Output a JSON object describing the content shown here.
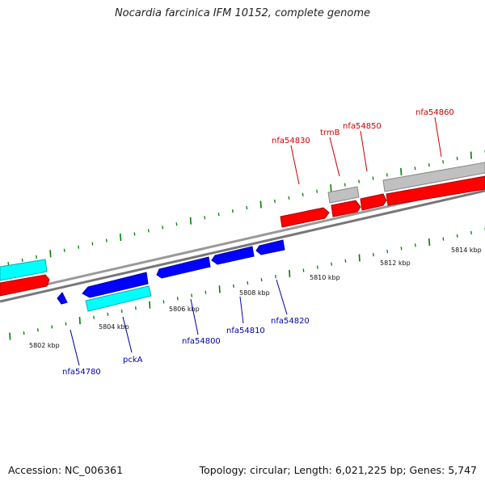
{
  "title": "Nocardia farcinica IFM 10152, complete genome",
  "footer": {
    "accession": "Accession: NC_006361",
    "summary": "Topology: circular; Length: 6,021,225 bp; Genes: 5,747"
  },
  "colors": {
    "forward_gene": "#ff0000",
    "reverse_gene": "#0000ff",
    "forward_other": "#00ffff",
    "reverse_other": "#c0c0c0",
    "tick": "#008000",
    "backbone": "#888888",
    "red_label": "#cc0000",
    "blue_label": "#0000aa"
  },
  "axis": {
    "unit": "kbp",
    "tick_labels": [
      "5802 kbp",
      "5804 kbp",
      "5806 kbp",
      "5808 kbp",
      "5810 kbp",
      "5812 kbp",
      "5814 kbp"
    ]
  },
  "labels": {
    "top": [
      "nfa54830",
      "trmB",
      "nfa54850",
      "nfa54860"
    ],
    "bottom": [
      "nfa54780",
      "pckA",
      "nfa54800",
      "nfa54810",
      "nfa54820"
    ]
  }
}
